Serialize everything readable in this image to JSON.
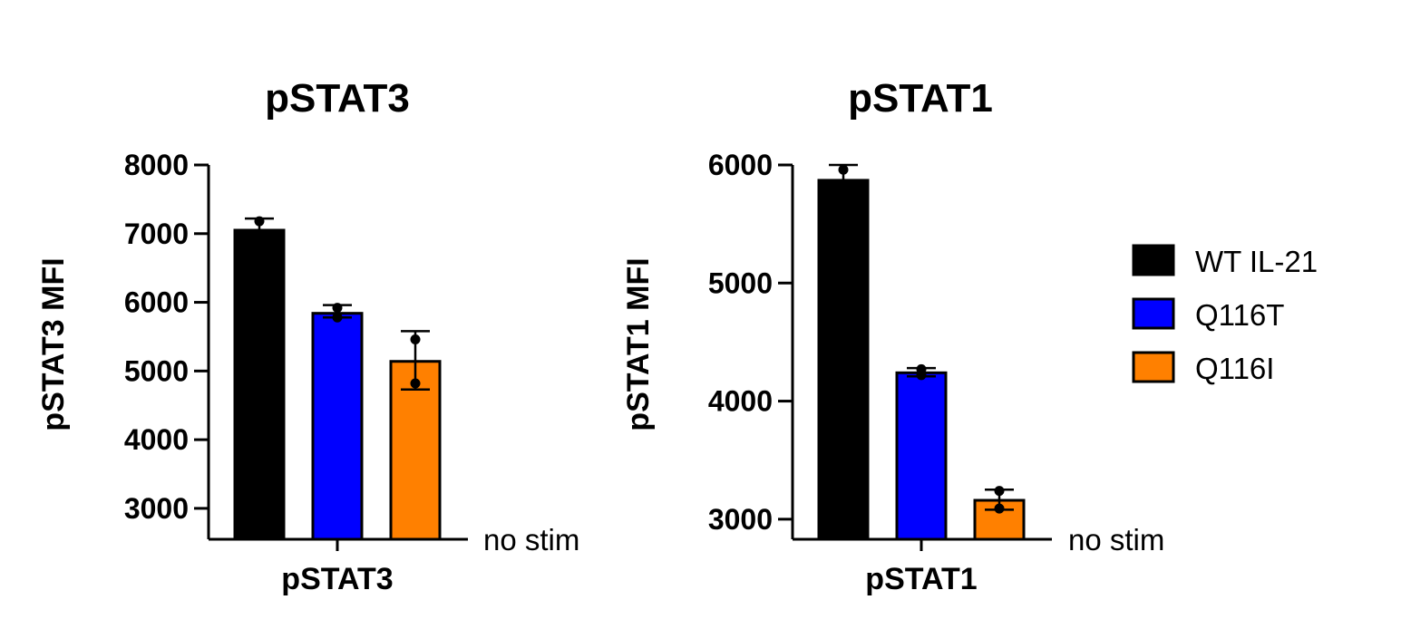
{
  "chart_data": [
    {
      "type": "bar",
      "title": "pSTAT3",
      "ylabel": "pSTAT3 MFI",
      "xlabel": "pSTAT3",
      "baseline_note": "no stim",
      "ylim": [
        2550,
        8000
      ],
      "yticks": [
        3000,
        4000,
        5000,
        6000,
        7000,
        8000
      ],
      "series": [
        {
          "name": "WT IL-21",
          "value": 7050,
          "error": [
            6970,
            7220
          ],
          "points": [
            7180,
            6960
          ],
          "color": "#000000"
        },
        {
          "name": "Q116T",
          "value": 5840,
          "error": [
            5780,
            5960
          ],
          "points": [
            5920,
            5780
          ],
          "color": "#0000ff"
        },
        {
          "name": "Q116I",
          "value": 5140,
          "error": [
            4730,
            5580
          ],
          "points": [
            5460,
            4820
          ],
          "color": "#ff8000"
        }
      ]
    },
    {
      "type": "bar",
      "title": "pSTAT1",
      "ylabel": "pSTAT1 MFI",
      "xlabel": "pSTAT1",
      "baseline_note": "no stim",
      "ylim": [
        2830,
        6000
      ],
      "yticks": [
        3000,
        4000,
        5000,
        6000
      ],
      "series": [
        {
          "name": "WT IL-21",
          "value": 5870,
          "error": [
            5780,
            6000
          ],
          "points": [
            5960,
            5780
          ],
          "color": "#000000"
        },
        {
          "name": "Q116T",
          "value": 4240,
          "error": [
            4210,
            4280
          ],
          "points": [
            4270,
            4220
          ],
          "color": "#0000ff"
        },
        {
          "name": "Q116I",
          "value": 3160,
          "error": [
            3080,
            3250
          ],
          "points": [
            3240,
            3090
          ],
          "color": "#ff8000"
        }
      ]
    }
  ],
  "legend": {
    "items": [
      {
        "label": "WT IL-21",
        "color": "#000000"
      },
      {
        "label": "Q116T",
        "color": "#0000ff"
      },
      {
        "label": "Q116I",
        "color": "#ff8000"
      }
    ]
  }
}
